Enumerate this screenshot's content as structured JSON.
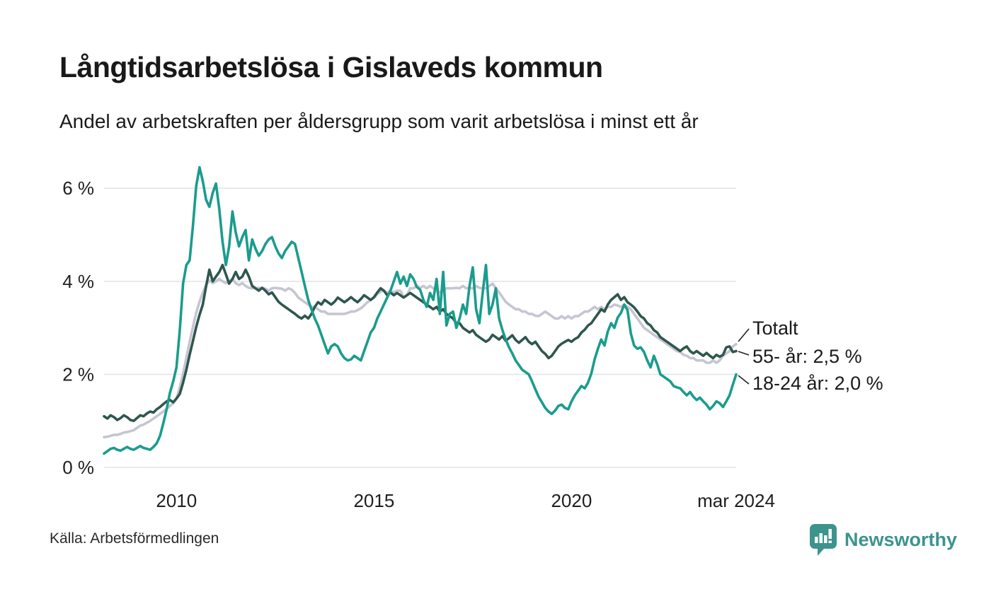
{
  "header": {
    "title": "Långtidsarbetslösa i Gislaveds kommun",
    "subtitle": "Andel av arbetskraften per åldersgrupp som varit arbetslösa i minst ett år"
  },
  "footer": {
    "source": "Källa: Arbetsförmedlingen",
    "brand": "Newsworthy"
  },
  "colors": {
    "teal_line": "#1a9c8d",
    "dark_line": "#2e574e",
    "gray_line": "#c6c5d3",
    "gridline": "#e4e3e8",
    "text": "#1a1a1a",
    "brand_teal": "#3c948c"
  },
  "chart_data": {
    "type": "line",
    "title": "Långtidsarbetslösa i Gislaveds kommun",
    "subtitle": "Andel av arbetskraften per åldersgrupp som varit arbetslösa i minst ett år",
    "unit": "%",
    "start": "2008-03",
    "end": "2024-03",
    "frequency": "monthly",
    "grid": "horizontal",
    "legend_position": "right-end-labels",
    "ylim": [
      0,
      6.6
    ],
    "y_ticks": [
      {
        "value": 0,
        "label": "0 %"
      },
      {
        "value": 2,
        "label": "2 %"
      },
      {
        "value": 4,
        "label": "4 %"
      },
      {
        "value": 6,
        "label": "6 %"
      }
    ],
    "x_ticks": [
      {
        "index": 22,
        "label": "2010"
      },
      {
        "index": 82,
        "label": "2015"
      },
      {
        "index": 142,
        "label": "2020"
      },
      {
        "index": 192,
        "label": "mar 2024"
      }
    ],
    "series": [
      {
        "name": "Totalt",
        "end_label": "Totalt",
        "end_value": 2.65,
        "color": "#c6c5d3",
        "values": [
          0.65,
          0.66,
          0.68,
          0.7,
          0.7,
          0.72,
          0.75,
          0.76,
          0.78,
          0.8,
          0.85,
          0.9,
          0.92,
          0.96,
          1.0,
          1.05,
          1.1,
          1.15,
          1.2,
          1.26,
          1.32,
          1.38,
          1.48,
          1.72,
          2.02,
          2.36,
          2.7,
          3.02,
          3.32,
          3.56,
          3.76,
          3.92,
          4.02,
          3.96,
          4.0,
          4.05,
          4.0,
          3.96,
          4.0,
          4.05,
          3.96,
          3.92,
          3.96,
          3.9,
          3.86,
          3.85,
          3.85,
          3.86,
          3.85,
          3.84,
          3.8,
          3.85,
          3.86,
          3.85,
          3.84,
          3.8,
          3.85,
          3.82,
          3.75,
          3.65,
          3.6,
          3.55,
          3.5,
          3.45,
          3.45,
          3.4,
          3.35,
          3.35,
          3.3,
          3.3,
          3.3,
          3.3,
          3.3,
          3.3,
          3.32,
          3.35,
          3.35,
          3.38,
          3.42,
          3.48,
          3.55,
          3.6,
          3.65,
          3.72,
          3.78,
          3.8,
          3.75,
          3.8,
          3.76,
          3.8,
          3.8,
          3.66,
          3.7,
          3.85,
          3.85,
          3.9,
          3.86,
          3.9,
          3.85,
          3.9,
          3.85,
          3.8,
          3.76,
          3.8,
          3.85,
          3.85,
          3.85,
          3.86,
          3.85,
          3.9,
          3.85,
          3.86,
          3.85,
          3.9,
          3.86,
          3.85,
          3.85,
          3.9,
          3.95,
          3.85,
          3.76,
          3.66,
          3.56,
          3.5,
          3.45,
          3.4,
          3.4,
          3.35,
          3.35,
          3.3,
          3.3,
          3.26,
          3.25,
          3.3,
          3.35,
          3.3,
          3.25,
          3.2,
          3.2,
          3.25,
          3.2,
          3.25,
          3.2,
          3.25,
          3.25,
          3.3,
          3.35,
          3.35,
          3.4,
          3.45,
          3.4,
          3.45,
          3.4,
          3.45,
          3.45,
          3.5,
          3.48,
          3.45,
          3.5,
          3.45,
          3.4,
          3.3,
          3.2,
          3.1,
          3.0,
          2.95,
          2.9,
          2.85,
          2.8,
          2.75,
          2.7,
          2.65,
          2.6,
          2.55,
          2.5,
          2.48,
          2.42,
          2.4,
          2.35,
          2.35,
          2.3,
          2.3,
          2.3,
          2.25,
          2.25,
          2.3,
          2.25,
          2.3,
          2.4,
          2.45,
          2.5,
          2.6,
          2.65
        ]
      },
      {
        "name": "55- år",
        "end_label": "55- år: 2,5 %",
        "end_value": 2.5,
        "color": "#2e574e",
        "values": [
          1.1,
          1.05,
          1.12,
          1.08,
          1.02,
          1.06,
          1.12,
          1.08,
          1.02,
          1.0,
          1.06,
          1.12,
          1.1,
          1.16,
          1.2,
          1.18,
          1.25,
          1.3,
          1.36,
          1.42,
          1.45,
          1.4,
          1.48,
          1.58,
          1.82,
          2.1,
          2.42,
          2.72,
          3.02,
          3.28,
          3.5,
          3.9,
          4.25,
          4.0,
          4.1,
          4.2,
          4.35,
          4.15,
          3.95,
          4.05,
          4.2,
          4.05,
          4.1,
          4.25,
          4.1,
          3.9,
          3.85,
          3.8,
          3.86,
          3.8,
          3.72,
          3.76,
          3.66,
          3.56,
          3.5,
          3.45,
          3.4,
          3.35,
          3.3,
          3.24,
          3.2,
          3.26,
          3.2,
          3.3,
          3.45,
          3.55,
          3.5,
          3.6,
          3.55,
          3.5,
          3.56,
          3.65,
          3.6,
          3.55,
          3.6,
          3.66,
          3.6,
          3.55,
          3.62,
          3.7,
          3.65,
          3.6,
          3.66,
          3.76,
          3.85,
          3.8,
          3.7,
          3.76,
          3.7,
          3.75,
          3.7,
          3.65,
          3.7,
          3.75,
          3.7,
          3.65,
          3.6,
          3.55,
          3.5,
          3.45,
          3.4,
          3.45,
          3.35,
          3.4,
          3.3,
          3.25,
          3.2,
          3.1,
          3.1,
          3.0,
          2.95,
          2.9,
          2.95,
          2.85,
          2.8,
          2.75,
          2.7,
          2.75,
          2.85,
          2.8,
          2.75,
          2.82,
          2.72,
          2.78,
          2.84,
          2.74,
          2.68,
          2.74,
          2.8,
          2.7,
          2.65,
          2.7,
          2.6,
          2.5,
          2.44,
          2.35,
          2.4,
          2.5,
          2.6,
          2.66,
          2.7,
          2.74,
          2.7,
          2.76,
          2.8,
          2.9,
          2.96,
          3.05,
          3.1,
          3.2,
          3.3,
          3.4,
          3.35,
          3.5,
          3.6,
          3.66,
          3.72,
          3.6,
          3.66,
          3.55,
          3.5,
          3.44,
          3.35,
          3.25,
          3.2,
          3.1,
          3.05,
          2.95,
          2.9,
          2.8,
          2.75,
          2.7,
          2.65,
          2.6,
          2.55,
          2.5,
          2.56,
          2.6,
          2.5,
          2.45,
          2.5,
          2.45,
          2.4,
          2.46,
          2.4,
          2.35,
          2.42,
          2.38,
          2.42,
          2.58,
          2.6,
          2.48,
          2.5
        ]
      },
      {
        "name": "18-24 år",
        "end_label": "18-24 år: 2,0 %",
        "end_value": 2.0,
        "color": "#1a9c8d",
        "values": [
          0.3,
          0.35,
          0.4,
          0.42,
          0.38,
          0.36,
          0.4,
          0.44,
          0.4,
          0.38,
          0.42,
          0.46,
          0.42,
          0.4,
          0.38,
          0.44,
          0.52,
          0.68,
          0.95,
          1.25,
          1.6,
          1.85,
          2.15,
          2.95,
          3.95,
          4.35,
          4.45,
          5.2,
          6.05,
          6.45,
          6.15,
          5.75,
          5.6,
          5.9,
          6.1,
          5.55,
          4.85,
          4.35,
          4.75,
          5.5,
          5.05,
          4.75,
          4.95,
          5.1,
          4.45,
          4.9,
          4.7,
          4.55,
          4.65,
          4.8,
          4.9,
          4.95,
          4.75,
          4.6,
          4.5,
          4.65,
          4.75,
          4.85,
          4.8,
          4.5,
          4.2,
          3.9,
          3.6,
          3.4,
          3.2,
          3.05,
          2.85,
          2.65,
          2.45,
          2.6,
          2.65,
          2.6,
          2.45,
          2.35,
          2.3,
          2.32,
          2.4,
          2.35,
          2.3,
          2.5,
          2.7,
          2.9,
          3.0,
          3.2,
          3.35,
          3.5,
          3.65,
          3.8,
          4.0,
          4.2,
          3.95,
          4.1,
          3.9,
          4.15,
          4.05,
          3.88,
          3.82,
          3.6,
          3.45,
          3.75,
          3.6,
          4.05,
          3.3,
          4.2,
          3.05,
          3.3,
          3.35,
          3.0,
          3.2,
          3.5,
          3.3,
          3.9,
          4.3,
          3.4,
          3.1,
          3.75,
          4.35,
          3.3,
          3.5,
          3.85,
          3.2,
          2.95,
          2.75,
          2.58,
          2.45,
          2.3,
          2.2,
          2.1,
          2.05,
          2.0,
          1.85,
          1.68,
          1.52,
          1.4,
          1.28,
          1.2,
          1.15,
          1.22,
          1.32,
          1.35,
          1.28,
          1.25,
          1.42,
          1.55,
          1.65,
          1.75,
          1.7,
          1.82,
          2.02,
          2.32,
          2.55,
          2.75,
          2.62,
          2.92,
          3.1,
          3.0,
          3.22,
          3.32,
          3.5,
          3.38,
          2.88,
          2.62,
          2.55,
          2.58,
          2.48,
          2.3,
          2.15,
          2.4,
          2.22,
          2.0,
          1.95,
          1.9,
          1.85,
          1.75,
          1.72,
          1.7,
          1.62,
          1.55,
          1.62,
          1.52,
          1.45,
          1.5,
          1.42,
          1.35,
          1.25,
          1.32,
          1.42,
          1.38,
          1.3,
          1.42,
          1.55,
          1.78,
          2.0
        ]
      }
    ]
  }
}
